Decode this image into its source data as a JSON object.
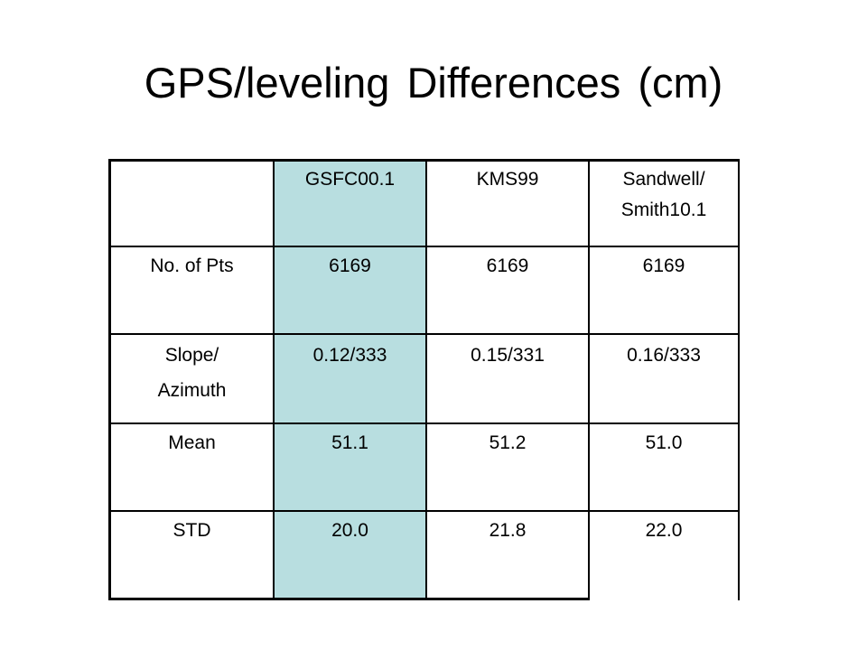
{
  "slide": {
    "title": "GPS/leveling Differences (cm)"
  },
  "table": {
    "headers": [
      "",
      "GSFC00.1",
      "KMS99",
      "Sandwell/ Smith10.1"
    ],
    "header_lines": {
      "sandwell_line1": "Sandwell/",
      "sandwell_line2": "Smith10.1"
    },
    "rows": [
      {
        "label": "No. of Pts",
        "values": [
          "6169",
          "6169",
          "6169"
        ]
      },
      {
        "label": "Slope/ Azimuth",
        "label_line1": "Slope/",
        "label_line2": "Azimuth",
        "values": [
          "0.12/333",
          "0.15/331",
          "0.16/333"
        ]
      },
      {
        "label": "Mean",
        "values": [
          "51.1",
          "51.2",
          "51.0"
        ]
      },
      {
        "label": "STD",
        "values": [
          "20.0",
          "21.8",
          "22.0"
        ]
      }
    ],
    "highlight_color": "#b8dee0"
  }
}
